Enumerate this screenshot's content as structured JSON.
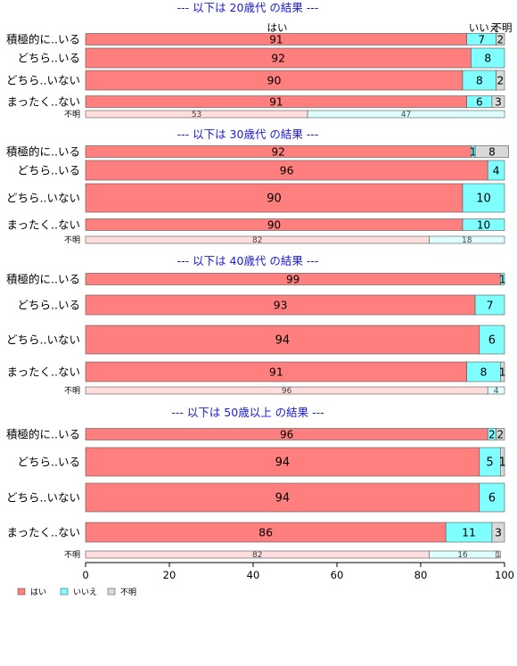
{
  "chart_data": {
    "type": "bar",
    "orientation": "horizontal",
    "stacked": true,
    "xlim": [
      0,
      100
    ],
    "x_ticks": [
      0,
      20,
      40,
      60,
      80,
      100
    ],
    "grid": false,
    "legend_position": "bottom-left",
    "series_names": [
      "はい",
      "いいえ",
      "不明"
    ],
    "colors": [
      "#FF7F7F",
      "#7FFFFF",
      "#D9D9D9"
    ],
    "unknown_colors": [
      "#FFDDDD",
      "#DDFFFF",
      "#EEEEEE"
    ],
    "column_labels": [
      "はい",
      "いいえ",
      "不明"
    ],
    "panels": [
      {
        "title": "--- 以下は 20歳代 の結果 ---",
        "show_column_labels": true,
        "rows": [
          {
            "label": "積極的に..いる",
            "values": [
              91,
              7,
              2
            ],
            "size": "s"
          },
          {
            "label": "どちら..いる",
            "values": [
              92,
              8,
              0
            ],
            "size": "m"
          },
          {
            "label": "どちら..いない",
            "values": [
              90,
              8,
              2
            ],
            "size": "m"
          },
          {
            "label": "まったく..ない",
            "values": [
              91,
              6,
              3
            ],
            "size": "s"
          },
          {
            "label": "不明",
            "values": [
              53,
              47,
              0
            ],
            "size": "u"
          }
        ]
      },
      {
        "title": "--- 以下は 30歳代 の結果 ---",
        "show_column_labels": false,
        "rows": [
          {
            "label": "積極的に..いる",
            "values": [
              92,
              1,
              8
            ],
            "size": "s"
          },
          {
            "label": "どちら..いる",
            "values": [
              96,
              4,
              0
            ],
            "size": "m"
          },
          {
            "label": "どちら..いない",
            "values": [
              90,
              10,
              0
            ],
            "size": "l"
          },
          {
            "label": "まったく..ない",
            "values": [
              90,
              10,
              0
            ],
            "size": "s"
          },
          {
            "label": "不明",
            "values": [
              82,
              18,
              0
            ],
            "size": "u"
          }
        ]
      },
      {
        "title": "--- 以下は 40歳代 の結果 ---",
        "show_column_labels": false,
        "rows": [
          {
            "label": "積極的に..いる",
            "values": [
              99,
              1,
              0
            ],
            "size": "s"
          },
          {
            "label": "どちら..いる",
            "values": [
              93,
              7,
              0
            ],
            "size": "m"
          },
          {
            "label": "どちら..いない",
            "values": [
              94,
              6,
              0
            ],
            "size": "l"
          },
          {
            "label": "まったく..ない",
            "values": [
              91,
              8,
              1
            ],
            "size": "m"
          },
          {
            "label": "不明",
            "values": [
              96,
              4,
              0
            ],
            "size": "u"
          }
        ]
      },
      {
        "title": "--- 以下は 50歳以上 の結果 ---",
        "show_column_labels": false,
        "rows": [
          {
            "label": "積極的に..いる",
            "values": [
              96,
              2,
              2
            ],
            "size": "s"
          },
          {
            "label": "どちら..いる",
            "values": [
              94,
              5,
              1
            ],
            "size": "l"
          },
          {
            "label": "どちら..いない",
            "values": [
              94,
              6,
              0
            ],
            "size": "l"
          },
          {
            "label": "まったく..ない",
            "values": [
              86,
              11,
              3
            ],
            "size": "m"
          },
          {
            "label": "不明",
            "values": [
              82,
              16,
              1
            ],
            "size": "u"
          }
        ]
      }
    ]
  }
}
